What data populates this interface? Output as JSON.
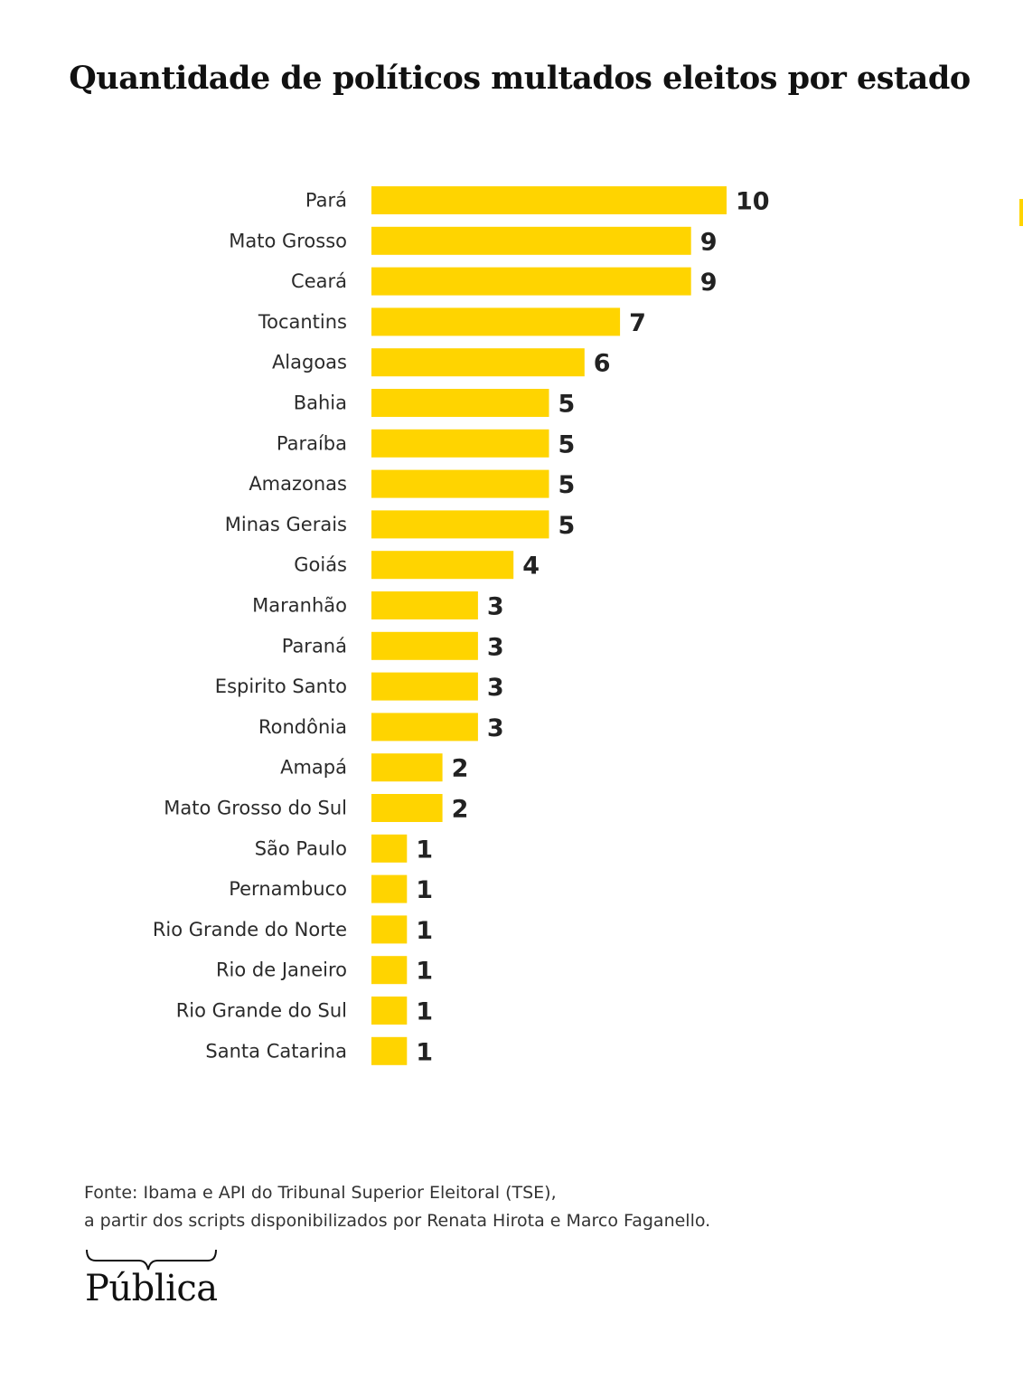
{
  "title": "Quantidade de políticos multados eleitos por estado",
  "source": {
    "line1": "Fonte: Ibama e API do Tribunal Superior Eleitoral (TSE),",
    "line2": "a partir dos scripts disponibilizados por Renata Hirota e Marco Faganello."
  },
  "logo": {
    "text": "Pública"
  },
  "colors": {
    "bar": "#ffd400",
    "text": "#1a1a1a"
  },
  "chart_data": {
    "type": "bar",
    "orientation": "horizontal",
    "title": "Quantidade de políticos multados eleitos por estado",
    "categories": [
      "Pará",
      "Mato Grosso",
      "Ceará",
      "Tocantins",
      "Alagoas",
      "Bahia",
      "Paraíba",
      "Amazonas",
      "Minas Gerais",
      "Goiás",
      "Maranhão",
      "Paraná",
      "Espirito Santo",
      "Rondônia",
      "Amapá",
      "Mato Grosso do Sul",
      "São Paulo",
      "Pernambuco",
      "Rio Grande do Norte",
      "Rio de Janeiro",
      "Rio Grande do Sul",
      "Santa Catarina"
    ],
    "values": [
      10,
      9,
      9,
      7,
      6,
      5,
      5,
      5,
      5,
      4,
      3,
      3,
      3,
      3,
      2,
      2,
      1,
      1,
      1,
      1,
      1,
      1
    ],
    "xlim": [
      0,
      10
    ],
    "grid": false,
    "data_labels": true
  }
}
